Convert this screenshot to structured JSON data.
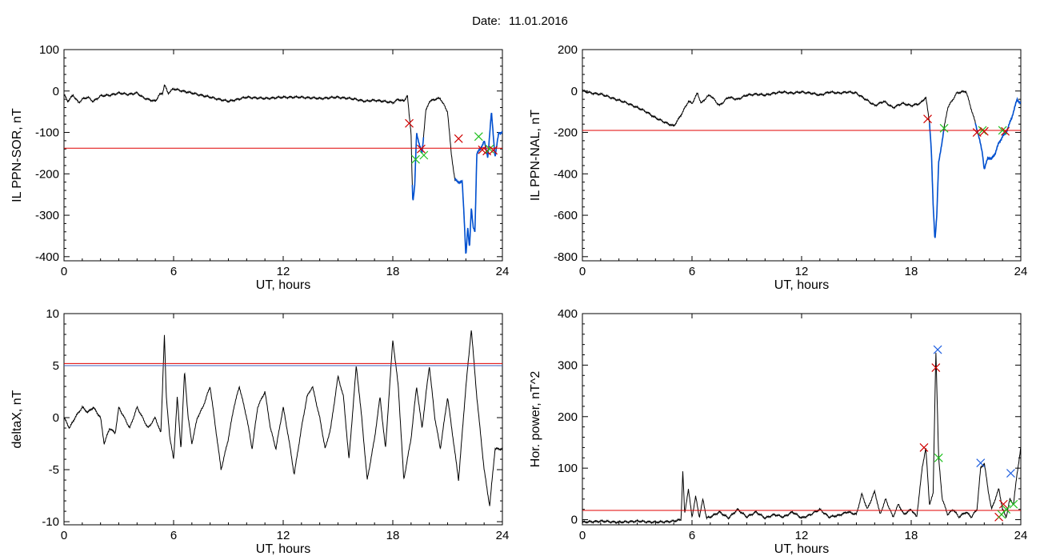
{
  "header": {
    "date_label": "Date:",
    "date_value": "11.01.2016"
  },
  "colors": {
    "trace": "#000000",
    "threshold": "#e00000",
    "highlight": "#0050d0",
    "marker_red": "#d00000",
    "marker_green": "#20c020",
    "marker_blue": "#2060e0",
    "threshold_blue": "#4060c0"
  },
  "chart_data": [
    {
      "type": "line",
      "id": "sor",
      "xlabel": "UT, hours",
      "ylabel": "IL PPN-SOR, nT",
      "xlim": [
        0,
        24
      ],
      "ylim": [
        -410,
        100
      ],
      "xticks": [
        "0",
        "6",
        "12",
        "18",
        "24"
      ],
      "yticks": [
        "100",
        "0",
        "-100",
        "-200",
        "-300",
        "-400"
      ],
      "threshold": -138,
      "series": [
        {
          "x": [
            0,
            0.2,
            0.5,
            0.8,
            1,
            1.3,
            1.6,
            2,
            2.5,
            3,
            3.5,
            4,
            4.3,
            4.6,
            5,
            5.2,
            5.4,
            5.5,
            5.7,
            6,
            6.5,
            7,
            7.5,
            8,
            8.5,
            9,
            9.5,
            10,
            11,
            12,
            13,
            14,
            15,
            16,
            16.5,
            17,
            17.5,
            18,
            18.3,
            18.6,
            18.8,
            18.9,
            19,
            19.05,
            19.1,
            19.2,
            19.3,
            19.45,
            19.6,
            19.8,
            20,
            20.3,
            20.6,
            21,
            21.2,
            21.4,
            21.6,
            21.8,
            21.9,
            22,
            22.1,
            22.2,
            22.3,
            22.4,
            22.5,
            22.6,
            22.8,
            23,
            23.2,
            23.4,
            23.6,
            23.8,
            24
          ],
          "y": [
            -8,
            -25,
            -10,
            -28,
            -20,
            -15,
            -25,
            -12,
            -10,
            -5,
            -8,
            -5,
            -15,
            -20,
            -25,
            -10,
            -5,
            15,
            -5,
            5,
            0,
            -5,
            -10,
            -15,
            -20,
            -25,
            -20,
            -15,
            -18,
            -15,
            -15,
            -18,
            -15,
            -20,
            -25,
            -22,
            -25,
            -28,
            -20,
            -25,
            -10,
            -60,
            -100,
            -200,
            -270,
            -230,
            -100,
            -130,
            -150,
            -50,
            -25,
            -20,
            -18,
            -50,
            -150,
            -215,
            -220,
            -220,
            -300,
            -400,
            -330,
            -380,
            -280,
            -330,
            -340,
            -150,
            -140,
            -120,
            -160,
            -50,
            -160,
            -100,
            -100
          ]
        }
      ],
      "highlight_spans": [
        [
          19.05,
          19.7
        ],
        [
          21.4,
          24
        ]
      ],
      "markers": [
        {
          "x": 18.9,
          "y": -78,
          "color": "red"
        },
        {
          "x": 19.25,
          "y": -165,
          "color": "green"
        },
        {
          "x": 19.55,
          "y": -140,
          "color": "red"
        },
        {
          "x": 19.7,
          "y": -155,
          "color": "green"
        },
        {
          "x": 21.6,
          "y": -115,
          "color": "red"
        },
        {
          "x": 22.7,
          "y": -110,
          "color": "green"
        },
        {
          "x": 22.9,
          "y": -142,
          "color": "red"
        },
        {
          "x": 23.15,
          "y": -145,
          "color": "red"
        },
        {
          "x": 23.3,
          "y": -140,
          "color": "green"
        },
        {
          "x": 23.5,
          "y": -143,
          "color": "red"
        }
      ]
    },
    {
      "type": "line",
      "id": "nal",
      "xlabel": "UT, hours",
      "ylabel": "IL PPN-NAL, nT",
      "xlim": [
        0,
        24
      ],
      "ylim": [
        -820,
        200
      ],
      "xticks": [
        "0",
        "6",
        "12",
        "18",
        "24"
      ],
      "yticks": [
        "200",
        "0",
        "-200",
        "-400",
        "-600",
        "-800"
      ],
      "threshold": -190,
      "series": [
        {
          "x": [
            0,
            0.5,
            1,
            1.5,
            2,
            2.5,
            3,
            3.5,
            4,
            4.5,
            5,
            5.3,
            5.5,
            5.8,
            6,
            6.3,
            6.5,
            6.8,
            7,
            7.5,
            8,
            8.5,
            9,
            9.5,
            10,
            10.5,
            11,
            11.5,
            12,
            12.5,
            13,
            13.5,
            14,
            14.5,
            15,
            15.5,
            16,
            16.5,
            17,
            17.5,
            18,
            18.5,
            18.8,
            19,
            19.1,
            19.2,
            19.3,
            19.4,
            19.5,
            19.8,
            20,
            20.5,
            21,
            21.5,
            21.7,
            21.9,
            22,
            22.2,
            22.4,
            22.6,
            22.8,
            23,
            23.2,
            23.5,
            23.8,
            24
          ],
          "y": [
            0,
            -10,
            -15,
            -30,
            -45,
            -60,
            -80,
            -100,
            -130,
            -150,
            -170,
            -130,
            -100,
            -50,
            -60,
            -10,
            -60,
            -30,
            -20,
            -70,
            -30,
            -40,
            -20,
            -15,
            -20,
            -10,
            -5,
            -10,
            -5,
            -10,
            -20,
            -5,
            -10,
            -5,
            -10,
            -40,
            -70,
            -50,
            -80,
            -60,
            -70,
            -60,
            -30,
            -150,
            -280,
            -550,
            -720,
            -600,
            -350,
            -180,
            -80,
            -10,
            0,
            -150,
            -220,
            -300,
            -380,
            -320,
            -330,
            -300,
            -250,
            -220,
            -200,
            -130,
            -40,
            -60
          ]
        }
      ],
      "highlight_spans": [
        [
          19.0,
          19.8
        ],
        [
          21.5,
          24
        ]
      ],
      "markers": [
        {
          "x": 18.9,
          "y": -135,
          "color": "red"
        },
        {
          "x": 19.8,
          "y": -180,
          "color": "green"
        },
        {
          "x": 21.6,
          "y": -200,
          "color": "red"
        },
        {
          "x": 21.9,
          "y": -190,
          "color": "green"
        },
        {
          "x": 22.0,
          "y": -195,
          "color": "red"
        },
        {
          "x": 23.0,
          "y": -190,
          "color": "green"
        },
        {
          "x": 23.15,
          "y": -195,
          "color": "red"
        }
      ]
    },
    {
      "type": "line",
      "id": "deltax",
      "xlabel": "UT, hours",
      "ylabel": "deltaX, nT",
      "xlim": [
        0,
        24
      ],
      "ylim": [
        -10.3,
        10
      ],
      "xticks": [
        "0",
        "6",
        "12",
        "18",
        "24"
      ],
      "yticks": [
        "10",
        "5",
        "0",
        "-5",
        "-10"
      ],
      "thresholds": [
        5.2,
        5.0
      ],
      "series": [
        {
          "x": [
            0,
            0.3,
            0.6,
            1,
            1.3,
            1.6,
            2,
            2.2,
            2.5,
            2.8,
            3,
            3.3,
            3.6,
            4,
            4.3,
            4.6,
            5,
            5.3,
            5.5,
            5.6,
            5.8,
            6,
            6.2,
            6.4,
            6.6,
            6.8,
            7,
            7.3,
            7.6,
            8,
            8.3,
            8.6,
            9,
            9.3,
            9.6,
            10,
            10.3,
            10.6,
            11,
            11.3,
            11.6,
            12,
            12.3,
            12.6,
            13,
            13.3,
            13.6,
            14,
            14.3,
            14.6,
            15,
            15.3,
            15.6,
            16,
            16.3,
            16.6,
            17,
            17.3,
            17.6,
            18,
            18.3,
            18.6,
            19,
            19.3,
            19.6,
            20,
            20.3,
            20.6,
            21,
            21.3,
            21.6,
            22,
            22.3,
            22.6,
            23,
            23.3,
            23.6,
            24
          ],
          "y": [
            0,
            -1,
            0,
            1,
            0.5,
            1,
            0,
            -2.5,
            -1,
            -1.5,
            1,
            0,
            -1,
            1,
            0,
            -1,
            0,
            -1.5,
            8,
            2,
            -2,
            -4,
            2,
            -3,
            4.5,
            0,
            -2.5,
            0,
            1,
            3,
            -1,
            -5,
            -2,
            1,
            3,
            0,
            -3,
            1,
            2.5,
            -1,
            -3,
            1,
            -2,
            -5.5,
            -1,
            2,
            3,
            0,
            -3,
            -1,
            4,
            2,
            -4,
            5,
            0,
            -6,
            -2,
            2,
            -3,
            7.5,
            3,
            -6,
            -2,
            3,
            -1,
            5,
            0,
            -3,
            2,
            -2,
            -6,
            3,
            8.5,
            2,
            -5,
            -8.5,
            -3,
            -3
          ]
        }
      ],
      "markers": []
    },
    {
      "type": "line",
      "id": "power",
      "xlabel": "UT, hours",
      "ylabel": "Hor. power, nT^2",
      "xlim": [
        0,
        24
      ],
      "ylim": [
        -10,
        400
      ],
      "xticks": [
        "0",
        "6",
        "12",
        "18",
        "24"
      ],
      "yticks": [
        "400",
        "300",
        "200",
        "100",
        "0"
      ],
      "threshold": 18,
      "series": [
        {
          "x": [
            0,
            1,
            2,
            3,
            4,
            5,
            5.4,
            5.5,
            5.6,
            5.8,
            6,
            6.2,
            6.4,
            6.6,
            6.8,
            7,
            7.5,
            8,
            8.5,
            9,
            9.5,
            10,
            10.5,
            11,
            11.5,
            12,
            12.5,
            13,
            13.5,
            14,
            14.5,
            15,
            15.3,
            15.6,
            16,
            16.3,
            16.6,
            17,
            17.3,
            17.6,
            18,
            18.3,
            18.6,
            18.8,
            19,
            19.2,
            19.35,
            19.5,
            19.7,
            20,
            20.3,
            20.6,
            21,
            21.3,
            21.6,
            21.8,
            22,
            22.2,
            22.4,
            22.6,
            22.8,
            23,
            23.2,
            23.4,
            23.6,
            23.8,
            24
          ],
          "y": [
            -5,
            -3,
            -5,
            -3,
            -5,
            -3,
            0,
            95,
            10,
            60,
            5,
            45,
            5,
            40,
            3,
            5,
            15,
            3,
            20,
            5,
            15,
            3,
            10,
            5,
            15,
            3,
            10,
            20,
            5,
            8,
            15,
            10,
            50,
            20,
            55,
            10,
            40,
            5,
            30,
            10,
            20,
            5,
            100,
            140,
            30,
            50,
            330,
            120,
            40,
            10,
            20,
            5,
            15,
            5,
            20,
            100,
            110,
            60,
            20,
            40,
            60,
            20,
            5,
            40,
            30,
            90,
            140
          ]
        }
      ],
      "markers": [
        {
          "x": 18.7,
          "y": 140,
          "color": "red"
        },
        {
          "x": 19.35,
          "y": 295,
          "color": "red"
        },
        {
          "x": 19.45,
          "y": 330,
          "color": "blue"
        },
        {
          "x": 19.5,
          "y": 120,
          "color": "green"
        },
        {
          "x": 21.8,
          "y": 110,
          "color": "blue"
        },
        {
          "x": 22.8,
          "y": 5,
          "color": "red"
        },
        {
          "x": 22.95,
          "y": 10,
          "color": "green"
        },
        {
          "x": 23.05,
          "y": 30,
          "color": "red"
        },
        {
          "x": 23.2,
          "y": 20,
          "color": "green"
        },
        {
          "x": 23.45,
          "y": 90,
          "color": "blue"
        },
        {
          "x": 23.6,
          "y": 30,
          "color": "green"
        }
      ]
    }
  ]
}
